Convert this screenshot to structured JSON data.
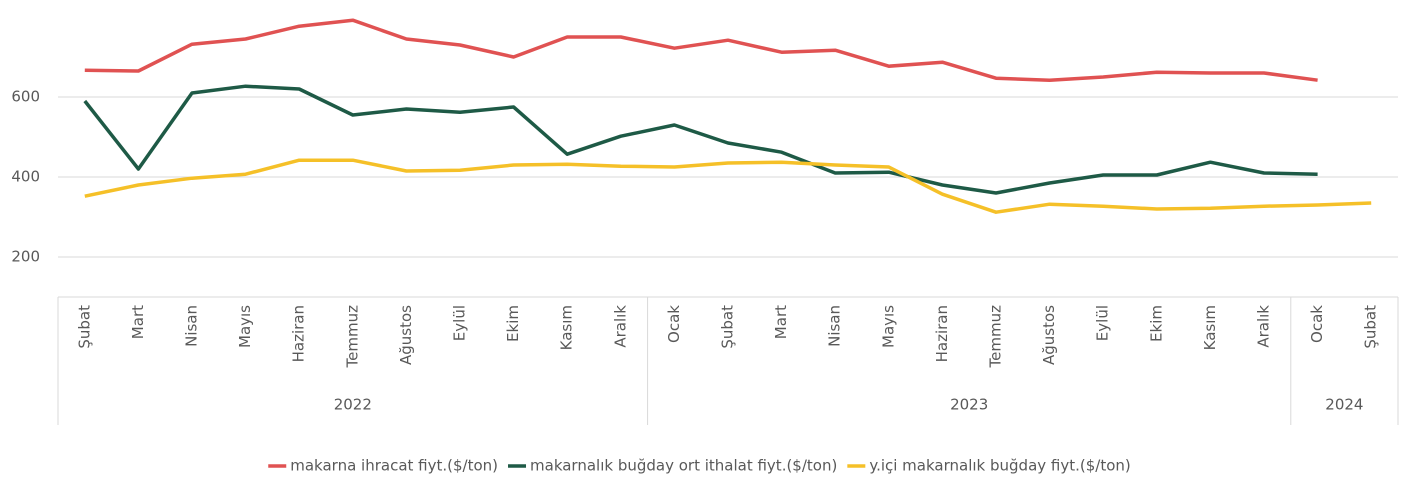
{
  "chart_data": {
    "type": "line",
    "categories": [
      "Şubat",
      "Mart",
      "Nisan",
      "Mayıs",
      "Haziran",
      "Temmuz",
      "Ağustos",
      "Eylül",
      "Ekim",
      "Kasım",
      "Aralık",
      "Ocak",
      "Şubat",
      "Mart",
      "Nisan",
      "Mayıs",
      "Haziran",
      "Temmuz",
      "Ağustos",
      "Eylül",
      "Ekim",
      "Kasım",
      "Aralık",
      "Ocak",
      "Şubat"
    ],
    "x_groups": [
      {
        "label": "2022",
        "size": 11
      },
      {
        "label": "2023",
        "size": 12
      },
      {
        "label": "2024",
        "size": 2
      }
    ],
    "series": [
      {
        "name": "makarna ihracat fiyt.($/ton)",
        "color": "#e05252",
        "values": [
          667,
          665,
          732,
          745,
          777,
          792,
          745,
          730,
          700,
          750,
          750,
          722,
          742,
          712,
          717,
          677,
          687,
          647,
          642,
          650,
          662,
          660,
          660,
          642,
          null
        ]
      },
      {
        "name": "makarnalık buğday ort ithalat fiyt.($/ton)",
        "color": "#1e5a46",
        "values": [
          590,
          420,
          610,
          627,
          620,
          555,
          570,
          562,
          575,
          457,
          502,
          530,
          485,
          462,
          410,
          412,
          380,
          360,
          385,
          405,
          405,
          437,
          410,
          407,
          null
        ]
      },
      {
        "name": "y.içi makarnalık buğday fiyt.($/ton)",
        "color": "#f5c028",
        "values": [
          352,
          380,
          397,
          407,
          442,
          442,
          415,
          417,
          430,
          432,
          427,
          425,
          435,
          437,
          430,
          425,
          357,
          312,
          332,
          327,
          320,
          322,
          327,
          330,
          335
        ]
      }
    ],
    "ylim": [
      100,
      800
    ],
    "yticks": [
      200,
      400,
      600
    ],
    "grid": true,
    "legend": "bottom"
  }
}
